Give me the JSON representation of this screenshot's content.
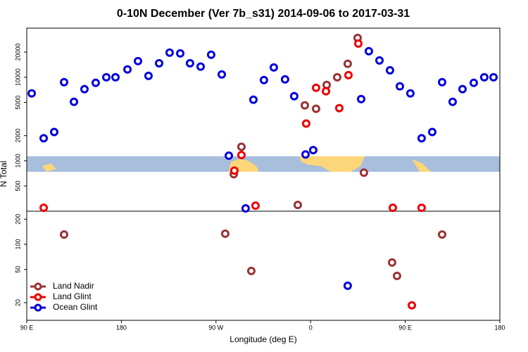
{
  "chart_data": {
    "type": "scatter",
    "title": "0-10N December (Ver 7b_s31)   2014-09-06 to 2017-03-31",
    "x_label": "Longitude (deg E)",
    "y_label": "N Total",
    "log_y": true,
    "xlim": [
      90,
      540
    ],
    "xticks": [
      {
        "value": 90,
        "label": "90 E"
      },
      180,
      {
        "value": 270,
        "label": "90 W"
      },
      {
        "value": 360,
        "label": "0"
      },
      {
        "value": 450,
        "label": "90 E"
      },
      {
        "value": 540,
        "label": "180"
      }
    ],
    "ylim": [
      12.3,
      38700
    ],
    "yticks": [
      20,
      50,
      100,
      200,
      500,
      1000,
      2000,
      5000,
      10000,
      20000
    ],
    "legend": "lower left",
    "series": [
      {
        "name": "Land Nadir",
        "color": "#993333",
        "x": [
          125.5,
          278.8,
          286.9,
          294.2,
          303.6,
          347.8,
          354.5,
          365.2,
          375.3,
          385.3,
          395.3,
          404.7,
          410.7,
          437.5,
          442.2,
          485.1
        ],
        "values": [
          131,
          134,
          692,
          1470,
          48,
          296,
          4610,
          4190,
          8090,
          10000,
          14500,
          29600,
          720,
          60.5,
          41.9,
          131
        ]
      },
      {
        "name": "Land Glint",
        "color": "#ee0000",
        "x": [
          106.1,
          287.5,
          294.2,
          307.6,
          355.8,
          365.2,
          374.6,
          387.3,
          396.0,
          405.4,
          438.2,
          456.3,
          465.6
        ],
        "values": [
          274,
          762,
          1170,
          290,
          2790,
          7480,
          6790,
          4270,
          10600,
          25300,
          274,
          18.6,
          274
        ]
      },
      {
        "name": "Ocean Glint",
        "color": "#0000dd",
        "x": [
          94.7,
          106.1,
          116.1,
          125.5,
          134.9,
          144.9,
          155.6,
          165.7,
          174.4,
          185.8,
          195.8,
          205.8,
          215.9,
          225.9,
          236.0,
          245.3,
          255.4,
          265.4,
          275.5,
          282.2,
          298.2,
          305.6,
          315.6,
          325.0,
          335.7,
          344.4,
          355.2,
          362.5,
          395.3,
          408.1,
          415.4,
          425.5,
          435.5,
          444.9,
          454.9,
          465.6,
          475.7,
          485.1,
          495.1,
          504.5,
          515.2,
          525.2,
          534.0
        ],
        "values": [
          6410,
          1860,
          2210,
          8730,
          5080,
          7200,
          8570,
          10000,
          10000,
          12400,
          15600,
          10400,
          14700,
          19700,
          19300,
          14700,
          13400,
          18600,
          10800,
          1150,
          269,
          5380,
          9250,
          13100,
          9440,
          5930,
          1190,
          1340,
          31.9,
          5480,
          20500,
          15900,
          12100,
          7780,
          6410,
          1860,
          2210,
          8730,
          5080,
          7200,
          8570,
          10000,
          10000
        ]
      }
    ]
  }
}
